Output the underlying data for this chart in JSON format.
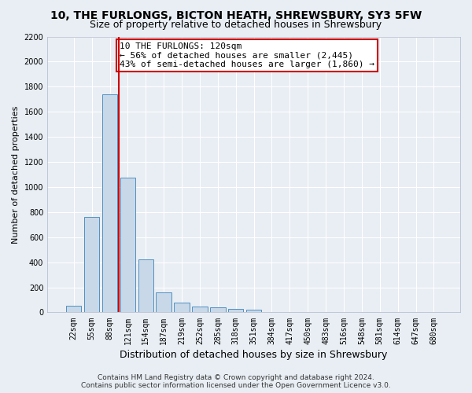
{
  "title": "10, THE FURLONGS, BICTON HEATH, SHREWSBURY, SY3 5FW",
  "subtitle": "Size of property relative to detached houses in Shrewsbury",
  "xlabel": "Distribution of detached houses by size in Shrewsbury",
  "ylabel": "Number of detached properties",
  "categories": [
    "22sqm",
    "55sqm",
    "88sqm",
    "121sqm",
    "154sqm",
    "187sqm",
    "219sqm",
    "252sqm",
    "285sqm",
    "318sqm",
    "351sqm",
    "384sqm",
    "417sqm",
    "450sqm",
    "483sqm",
    "516sqm",
    "548sqm",
    "581sqm",
    "614sqm",
    "647sqm",
    "680sqm"
  ],
  "values": [
    55,
    760,
    1740,
    1075,
    420,
    158,
    80,
    47,
    38,
    27,
    20,
    0,
    0,
    0,
    0,
    0,
    0,
    0,
    0,
    0,
    0
  ],
  "bar_color": "#c8d8e8",
  "bar_edge_color": "#5090c0",
  "vline_x": 2.5,
  "vline_color": "#cc0000",
  "annotation_text": "10 THE FURLONGS: 120sqm\n← 56% of detached houses are smaller (2,445)\n43% of semi-detached houses are larger (1,860) →",
  "annotation_box_color": "#cc0000",
  "ylim": [
    0,
    2200
  ],
  "yticks": [
    0,
    200,
    400,
    600,
    800,
    1000,
    1200,
    1400,
    1600,
    1800,
    2000,
    2200
  ],
  "bg_color": "#e8eef4",
  "grid_color": "#ffffff",
  "footer": "Contains HM Land Registry data © Crown copyright and database right 2024.\nContains public sector information licensed under the Open Government Licence v3.0.",
  "title_fontsize": 10,
  "subtitle_fontsize": 9,
  "xlabel_fontsize": 9,
  "ylabel_fontsize": 8,
  "tick_fontsize": 7,
  "annotation_fontsize": 8,
  "footer_fontsize": 6.5
}
